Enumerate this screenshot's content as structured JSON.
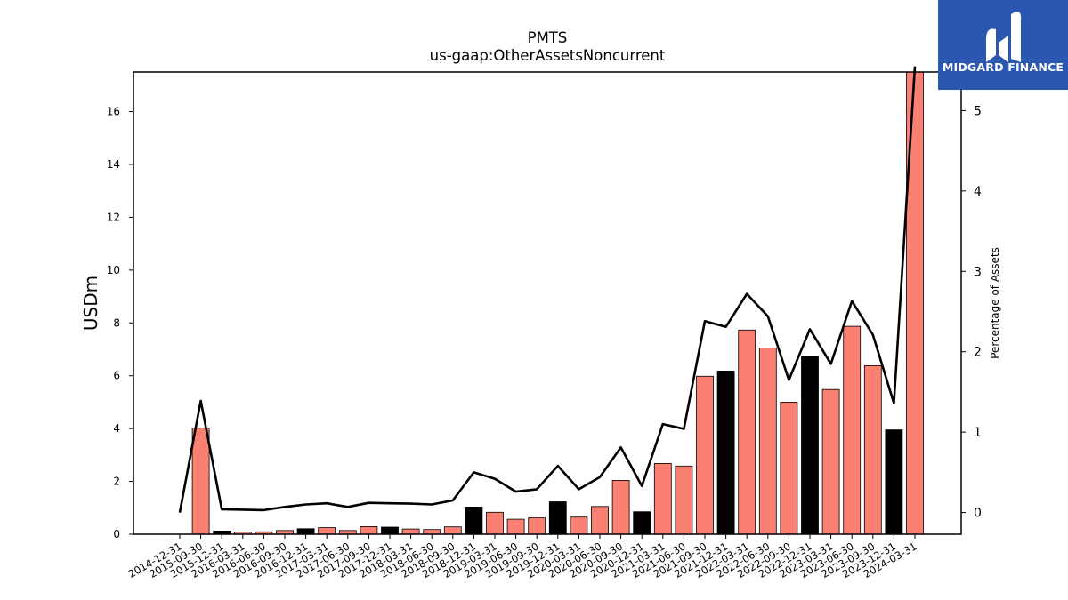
{
  "chart_data": {
    "type": "bar",
    "title": "PMTS",
    "subtitle": "us-gaap:OtherAssetsNoncurrent",
    "ylabel_left": "USDm",
    "ylabel_right": "Percentage of Assets",
    "ylim_left": [
      0,
      17.5
    ],
    "ylim_right": [
      -0.27,
      5.48
    ],
    "yticks_left": [
      0,
      2,
      4,
      6,
      8,
      10,
      12,
      14,
      16
    ],
    "yticks_right": [
      0,
      1,
      2,
      3,
      4,
      5
    ],
    "categories": [
      "2014-12-31",
      "2015-09-30",
      "2015-12-31",
      "2016-03-31",
      "2016-06-30",
      "2016-09-30",
      "2016-12-31",
      "2017-03-31",
      "2017-06-30",
      "2017-09-30",
      "2017-12-31",
      "2018-03-31",
      "2018-06-30",
      "2018-09-30",
      "2018-12-31",
      "2019-03-31",
      "2019-06-30",
      "2019-09-30",
      "2019-12-31",
      "2020-03-31",
      "2020-06-30",
      "2020-09-30",
      "2020-12-31",
      "2021-03-31",
      "2021-06-30",
      "2021-09-30",
      "2021-12-31",
      "2022-03-31",
      "2022-06-30",
      "2022-09-30",
      "2022-12-31",
      "2023-03-31",
      "2023-06-30",
      "2023-09-30",
      "2023-12-31",
      "2024-03-31"
    ],
    "series": [
      {
        "type": "bar",
        "values": [
          0,
          4.02,
          0.12,
          0.08,
          0.09,
          0.14,
          0.21,
          0.25,
          0.14,
          0.29,
          0.27,
          0.2,
          0.18,
          0.28,
          1.03,
          0.83,
          0.57,
          0.62,
          1.23,
          0.65,
          1.05,
          2.04,
          0.85,
          2.68,
          2.58,
          5.98,
          6.18,
          7.73,
          7.05,
          5.0,
          6.75,
          5.48,
          7.87,
          6.38,
          3.95,
          17.5
        ],
        "colors": [
          "#fa8072",
          "#fa8072",
          "#000000",
          "#fa8072",
          "#fa8072",
          "#fa8072",
          "#000000",
          "#fa8072",
          "#fa8072",
          "#fa8072",
          "#000000",
          "#fa8072",
          "#fa8072",
          "#fa8072",
          "#000000",
          "#fa8072",
          "#fa8072",
          "#fa8072",
          "#000000",
          "#fa8072",
          "#fa8072",
          "#fa8072",
          "#000000",
          "#fa8072",
          "#fa8072",
          "#fa8072",
          "#000000",
          "#fa8072",
          "#fa8072",
          "#fa8072",
          "#000000",
          "#fa8072",
          "#fa8072",
          "#fa8072",
          "#000000",
          "#fa8072"
        ]
      },
      {
        "type": "line",
        "axis": "right",
        "color": "#000000",
        "values": [
          0.0,
          1.39,
          0.04,
          0.035,
          0.03,
          0.07,
          0.1,
          0.115,
          0.07,
          0.12,
          0.115,
          0.11,
          0.1,
          0.15,
          0.5,
          0.42,
          0.26,
          0.29,
          0.58,
          0.29,
          0.44,
          0.81,
          0.33,
          1.1,
          1.04,
          2.38,
          2.31,
          2.72,
          2.44,
          1.65,
          2.28,
          1.85,
          2.63,
          2.21,
          1.36,
          5.55
        ]
      }
    ],
    "grid": false,
    "bar_edge_color": "#000000"
  },
  "logo": {
    "text": "MIDGARD FINANCE",
    "background": "#2a58b0",
    "icon": "stylized-m-icon"
  }
}
